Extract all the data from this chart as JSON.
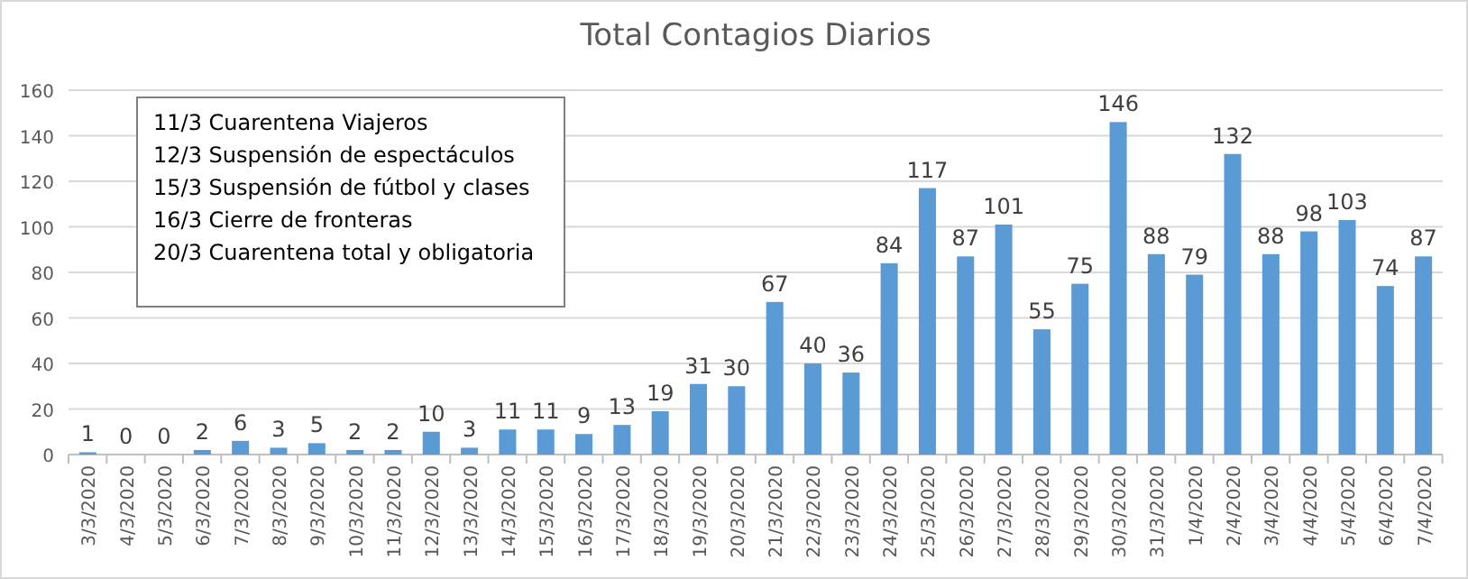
{
  "chart_data": {
    "type": "bar",
    "title": "Total Contagios Diarios",
    "categories": [
      "3/3/2020",
      "4/3/2020",
      "5/3/2020",
      "6/3/2020",
      "7/3/2020",
      "8/3/2020",
      "9/3/2020",
      "10/3/2020",
      "11/3/2020",
      "12/3/2020",
      "13/3/2020",
      "14/3/2020",
      "15/3/2020",
      "16/3/2020",
      "17/3/2020",
      "18/3/2020",
      "19/3/2020",
      "20/3/2020",
      "21/3/2020",
      "22/3/2020",
      "23/3/2020",
      "24/3/2020",
      "25/3/2020",
      "26/3/2020",
      "27/3/2020",
      "28/3/2020",
      "29/3/2020",
      "30/3/2020",
      "31/3/2020",
      "1/4/2020",
      "2/4/2020",
      "3/4/2020",
      "4/4/2020",
      "5/4/2020",
      "6/4/2020",
      "7/4/2020"
    ],
    "values": [
      1,
      0,
      0,
      2,
      6,
      3,
      5,
      2,
      2,
      10,
      3,
      11,
      11,
      9,
      13,
      19,
      31,
      30,
      67,
      40,
      36,
      84,
      117,
      87,
      101,
      55,
      75,
      146,
      88,
      79,
      132,
      88,
      98,
      103,
      74,
      87
    ],
    "color": "#5b9bd5",
    "ylim": [
      0,
      160
    ],
    "yticks": [
      0,
      20,
      40,
      60,
      80,
      100,
      120,
      140,
      160
    ],
    "grid": "y",
    "data_labels": true,
    "annotations": [
      "11/3 Cuarentena Viajeros",
      "12/3 Suspensión de espectáculos",
      "15/3 Suspensión de fútbol y clases",
      "16/3 Cierre de fronteras",
      "20/3 Cuarentena total y obligatoria"
    ]
  }
}
